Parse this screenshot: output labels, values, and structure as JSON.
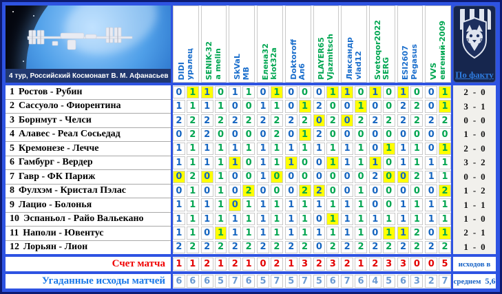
{
  "header": {
    "round_caption": "4 тур,  Российский Космонавт В. М. Афанасьев",
    "fact_label": "По факту"
  },
  "players": [
    {
      "name": "DIDI",
      "color": "blue"
    },
    {
      "name": "уралец",
      "color": "blue"
    },
    {
      "name": "SENIK-32",
      "color": "green"
    },
    {
      "name": "a melin",
      "color": "green"
    },
    {
      "name": "SkVaL",
      "color": "blue"
    },
    {
      "name": "МВ",
      "color": "blue"
    },
    {
      "name": "Елена32",
      "color": "green"
    },
    {
      "name": "klot32a",
      "color": "green"
    },
    {
      "name": "Doktoroff",
      "color": "blue"
    },
    {
      "name": "Ал6",
      "color": "blue"
    },
    {
      "name": "PLAYER65",
      "color": "green"
    },
    {
      "name": "Vjazmitsch",
      "color": "green"
    },
    {
      "name": "Ляксандр",
      "color": "blue"
    },
    {
      "name": "vlad12",
      "color": "blue"
    },
    {
      "name": "Svetoqor2022",
      "color": "green"
    },
    {
      "name": "SERG",
      "color": "green"
    },
    {
      "name": "ESI2607",
      "color": "blue"
    },
    {
      "name": "Pegasus",
      "color": "blue"
    },
    {
      "name": "VVS",
      "color": "green"
    },
    {
      "name": "евгений-2009",
      "color": "green"
    }
  ],
  "matches": [
    {
      "num": "1",
      "name": "Ростов - Рубин",
      "home": "2",
      "away": "0"
    },
    {
      "num": "2",
      "name": "Сассуоло - Фиорентина",
      "home": "3",
      "away": "1"
    },
    {
      "num": "3",
      "name": "Борнмут - Челси",
      "home": "0",
      "away": "0"
    },
    {
      "num": "4",
      "name": "Алавес - Реал Сосьедад",
      "home": "1",
      "away": "0"
    },
    {
      "num": "5",
      "name": "Кремонезе - Лечче",
      "home": "2",
      "away": "0"
    },
    {
      "num": "6",
      "name": "Гамбург - Вердер",
      "home": "3",
      "away": "2"
    },
    {
      "num": "7",
      "name": "Гавр - ФК Париж",
      "home": "0",
      "away": "0"
    },
    {
      "num": "8",
      "name": "Фулхэм - Кристал Пэлас",
      "home": "1",
      "away": "2"
    },
    {
      "num": "9",
      "name": "Лацио - Болонья",
      "home": "1",
      "away": "1"
    },
    {
      "num": "10",
      "name": "Эспаньол - Райо Вальекано",
      "home": "1",
      "away": "0"
    },
    {
      "num": "11",
      "name": "Наполи - Ювентус",
      "home": "2",
      "away": "1"
    },
    {
      "num": "12",
      "name": "Лорьян - Лион",
      "home": "1",
      "away": "0"
    }
  ],
  "predictions": [
    [
      0,
      1,
      1,
      0,
      1,
      1,
      0,
      1,
      0,
      0,
      0,
      1,
      1,
      0,
      1,
      0,
      1,
      0,
      0,
      1
    ],
    [
      1,
      1,
      1,
      1,
      0,
      0,
      1,
      1,
      0,
      1,
      2,
      0,
      0,
      1,
      0,
      0,
      2,
      2,
      0,
      1
    ],
    [
      2,
      2,
      2,
      2,
      2,
      2,
      2,
      2,
      2,
      2,
      0,
      2,
      0,
      2,
      2,
      2,
      2,
      2,
      2,
      2
    ],
    [
      0,
      2,
      2,
      0,
      0,
      0,
      0,
      2,
      0,
      1,
      2,
      0,
      0,
      0,
      0,
      0,
      0,
      0,
      0,
      0
    ],
    [
      1,
      1,
      1,
      1,
      1,
      1,
      1,
      1,
      1,
      1,
      1,
      1,
      1,
      1,
      0,
      1,
      1,
      1,
      0,
      1
    ],
    [
      1,
      1,
      1,
      1,
      1,
      0,
      1,
      1,
      1,
      0,
      0,
      1,
      1,
      1,
      1,
      0,
      1,
      1,
      1,
      1
    ],
    [
      0,
      2,
      0,
      1,
      0,
      0,
      1,
      0,
      0,
      0,
      0,
      0,
      0,
      0,
      2,
      0,
      0,
      2,
      1,
      1
    ],
    [
      0,
      1,
      0,
      1,
      0,
      2,
      0,
      0,
      0,
      2,
      2,
      0,
      0,
      1,
      0,
      0,
      0,
      0,
      0,
      2
    ],
    [
      1,
      1,
      1,
      1,
      0,
      1,
      1,
      1,
      1,
      1,
      1,
      1,
      1,
      1,
      0,
      0,
      1,
      1,
      1,
      1
    ],
    [
      1,
      1,
      1,
      1,
      1,
      1,
      1,
      1,
      1,
      1,
      0,
      1,
      1,
      1,
      1,
      1,
      1,
      1,
      1,
      1
    ],
    [
      1,
      1,
      0,
      1,
      1,
      1,
      1,
      1,
      1,
      1,
      1,
      1,
      1,
      1,
      0,
      1,
      1,
      2,
      0,
      1
    ],
    [
      2,
      2,
      2,
      2,
      2,
      2,
      2,
      2,
      2,
      2,
      0,
      2,
      2,
      2,
      2,
      2,
      2,
      2,
      2,
      2
    ]
  ],
  "exact_hits": [
    [
      2,
      3,
      8,
      12,
      13,
      15,
      17,
      20
    ],
    [
      10,
      14,
      20
    ],
    [
      11,
      13
    ],
    [
      10
    ],
    [
      16,
      20
    ],
    [
      5,
      9,
      12,
      15
    ],
    [
      1,
      3,
      8,
      16,
      17
    ],
    [
      6,
      10,
      11,
      20
    ],
    [
      5
    ],
    [
      12
    ],
    [
      4,
      16,
      17,
      20
    ],
    []
  ],
  "footer": {
    "score_label": "Счет матча",
    "score_values": [
      1,
      1,
      2,
      1,
      2,
      1,
      0,
      2,
      1,
      3,
      2,
      3,
      2,
      1,
      2,
      3,
      3,
      0,
      0,
      5
    ],
    "outcomes_label": "Угаданные исходы матчей",
    "outcomes_values": [
      6,
      6,
      6,
      5,
      7,
      6,
      5,
      7,
      5,
      7,
      5,
      6,
      7,
      6,
      4,
      5,
      6,
      3,
      2,
      7
    ],
    "avg_line1": "исходов в",
    "avg_line2_label": "среднем",
    "avg_value": "5,6"
  },
  "colors": {
    "frame_blue": "#2e53e2",
    "frame_navy": "#0d1a70",
    "header_blue": "#1a6ecc",
    "header_green": "#00a651",
    "digit_blue": "#1565c0",
    "digit_green": "#00a550",
    "hit_yellow": "#ffff00",
    "score_red": "#e30000",
    "outcomes_light_blue": "#6b9bd2",
    "fact_link_blue": "#2e7ce0",
    "logo_navy": "#16264e"
  }
}
